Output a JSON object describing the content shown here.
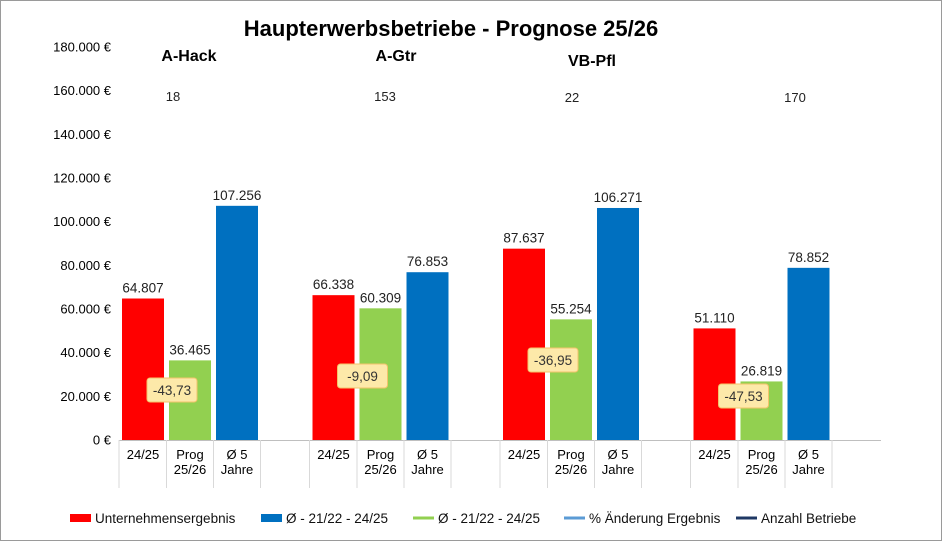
{
  "chart_data": {
    "type": "bar",
    "title": "Haupterwerbsbetriebe - Prognose 25/26",
    "ylim": [
      0,
      180000
    ],
    "y_ticks": [
      0,
      20000,
      40000,
      60000,
      80000,
      100000,
      120000,
      140000,
      160000,
      180000
    ],
    "y_tick_labels": [
      "0 €",
      "20.000 €",
      "40.000 €",
      "60.000 €",
      "80.000 €",
      "100.000 €",
      "120.000 €",
      "140.000 €",
      "160.000 €",
      "180.000 €"
    ],
    "groups": [
      {
        "name": "A-Hack",
        "count": "18",
        "pct_change": "-43,73",
        "bars": [
          {
            "category": "24/25",
            "value": 64807,
            "label": "64.807",
            "color": "#ff0000"
          },
          {
            "category": "Prog 25/26",
            "value": 36465,
            "label": "36.465",
            "color": "#92d050"
          },
          {
            "category": "Ø 5 Jahre",
            "value": 107256,
            "label": "107.256",
            "color": "#0070c0"
          }
        ]
      },
      {
        "name": "A-Gtr",
        "count": "153",
        "pct_change": "-9,09",
        "bars": [
          {
            "category": "24/25",
            "value": 66338,
            "label": "66.338",
            "color": "#ff0000"
          },
          {
            "category": "Prog 25/26",
            "value": 60309,
            "label": "60.309",
            "color": "#92d050"
          },
          {
            "category": "Ø 5 Jahre",
            "value": 76853,
            "label": "76.853",
            "color": "#0070c0"
          }
        ]
      },
      {
        "name": "VB-Pfl",
        "count": "22",
        "pct_change": "-36,95",
        "bars": [
          {
            "category": "24/25",
            "value": 87637,
            "label": "87.637",
            "color": "#ff0000"
          },
          {
            "category": "Prog 25/26",
            "value": 55254,
            "label": "55.254",
            "color": "#92d050"
          },
          {
            "category": "Ø 5 Jahre",
            "value": 106271,
            "label": "106.271",
            "color": "#0070c0"
          }
        ]
      },
      {
        "name": "",
        "count": "170",
        "pct_change": "-47,53",
        "bars": [
          {
            "category": "24/25",
            "value": 51110,
            "label": "51.110",
            "color": "#ff0000"
          },
          {
            "category": "Prog 25/26",
            "value": 26819,
            "label": "26.819",
            "color": "#92d050"
          },
          {
            "category": "Ø 5 Jahre",
            "value": 78852,
            "label": "78.852",
            "color": "#0070c0"
          }
        ]
      }
    ],
    "category_labels": [
      [
        "24/25"
      ],
      [
        "Prog",
        "25/26"
      ],
      [
        "Ø 5",
        "Jahre"
      ]
    ],
    "legend": [
      {
        "label": "Unternehmensergebnis",
        "color": "#ff0000",
        "kind": "box"
      },
      {
        "label": "Ø - 21/22 - 24/25",
        "color": "#0070c0",
        "kind": "box"
      },
      {
        "label": "Ø - 21/22 - 24/25",
        "color": "#92d050",
        "kind": "line"
      },
      {
        "label": "% Änderung Ergebnis",
        "color": "#5b9bd5",
        "kind": "line"
      },
      {
        "label": "Anzahl Betriebe",
        "color": "#1f3864",
        "kind": "line"
      }
    ],
    "legend_position": "bottom",
    "pct_label_fill": "#fde9a9",
    "pct_label_border": "#f4c36b"
  }
}
